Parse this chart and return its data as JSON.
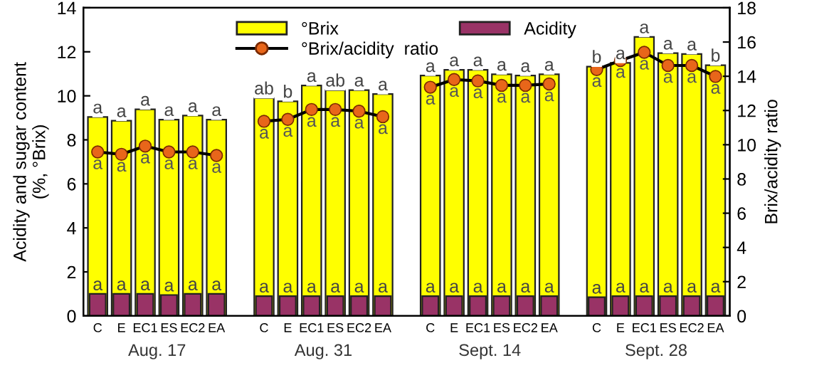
{
  "chart_data": {
    "type": "bar",
    "ylabel": "Acidity and sugar content\n(%, °Brix)",
    "y2label": "Brix/acidity ratio",
    "categories": [
      "C",
      "E",
      "EC1",
      "ES",
      "EC2",
      "EA",
      null,
      "C",
      "E",
      "EC1",
      "ES",
      "EC2",
      "EA",
      null,
      "C",
      "E",
      "EC1",
      "ES",
      "EC2",
      "EA",
      null,
      "C",
      "E",
      "EC1",
      "ES",
      "EC2",
      "EA"
    ],
    "series": [
      {
        "name": "°Brix",
        "color": "#ffff00",
        "values": [
          9.04,
          8.87,
          9.39,
          8.92,
          9.1,
          8.92,
          null,
          9.9,
          9.75,
          10.47,
          10.26,
          10.26,
          10.08,
          null,
          10.92,
          11.18,
          11.18,
          10.98,
          10.92,
          10.98,
          null,
          11.33,
          11.5,
          12.68,
          11.94,
          11.9,
          11.39
        ],
        "value_labels": [
          "a",
          "a",
          "a",
          "a",
          "a",
          "a",
          null,
          "ab",
          "b",
          "a",
          "ab",
          "a",
          "a",
          null,
          "a",
          "a",
          "a",
          "a",
          "a",
          "a",
          null,
          "b",
          "a",
          "a",
          "a",
          "a",
          "b"
        ]
      },
      {
        "name": "Acidity",
        "color": "#993366",
        "values": [
          1.0,
          1.0,
          1.0,
          0.95,
          1.0,
          1.0,
          null,
          0.9,
          0.9,
          0.9,
          0.9,
          0.9,
          0.9,
          null,
          0.9,
          0.9,
          0.9,
          0.9,
          0.9,
          0.9,
          null,
          0.85,
          0.9,
          0.9,
          0.9,
          0.9,
          0.9
        ],
        "value_labels": [
          "a",
          "a",
          "a",
          "a",
          "a",
          "a",
          null,
          "a",
          "a",
          "a",
          "a",
          "a",
          "a",
          null,
          "a",
          "a",
          "a",
          "a",
          "a",
          "a",
          null,
          "a",
          "a",
          "a",
          "a",
          "a",
          "a"
        ]
      },
      {
        "name": "°Brix/acidity  ratio",
        "type": "line",
        "axis": "y2",
        "color": "#000000",
        "colors": [
          "#e8661a",
          "#e8661a",
          "#e8661a",
          "#e8661a",
          "#e8661a",
          "#e8661a",
          null,
          "#e8661a",
          "#e8661a",
          "#e8661a",
          "#e8661a",
          "#e8661a",
          "#e8661a",
          null,
          "#e8661a",
          "#e8661a",
          "#e8661a",
          "#e8661a",
          "#e8661a",
          "#e8661a",
          null,
          "#e8661a",
          "#e8661a",
          "#e8661a",
          "#e8661a",
          "#e8661a",
          "#e8661a"
        ],
        "values": [
          9.58,
          9.44,
          9.92,
          9.58,
          9.58,
          9.37,
          null,
          11.37,
          11.48,
          12.06,
          12.06,
          11.96,
          11.64,
          null,
          13.36,
          13.81,
          13.73,
          13.47,
          13.47,
          13.55,
          null,
          14.39,
          14.92,
          15.4,
          14.63,
          14.63,
          13.99
        ],
        "value_labels": [
          "a",
          "a",
          "a",
          "a",
          "a",
          "a",
          null,
          "a",
          "a",
          "a",
          "a",
          "a",
          "a",
          null,
          "a",
          "a",
          "a",
          "a",
          "a",
          "a",
          null,
          "a",
          "a",
          "a",
          "a",
          "a",
          "a"
        ]
      }
    ],
    "annotations": [
      "Aug. 17",
      "Aug. 31",
      "Sept. 14",
      "Sept. 28"
    ],
    "ylim": [
      0,
      14
    ],
    "yticks": [
      0,
      2,
      4,
      6,
      8,
      10,
      12,
      14
    ],
    "y2lim": [
      0,
      18
    ],
    "y2ticks": [
      0,
      2,
      4,
      6,
      8,
      10,
      12,
      14,
      16,
      18
    ],
    "marker": "circle",
    "legend": "top",
    "grid": false
  }
}
